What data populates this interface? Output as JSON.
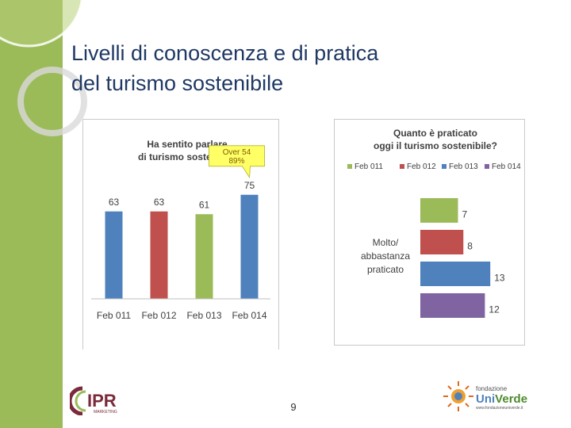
{
  "slide": {
    "title_lines": [
      "Livelli di conoscenza e di pratica",
      "del turismo sostenibile"
    ],
    "page_number": "9"
  },
  "chart_data": [
    {
      "type": "bar",
      "title_lines": [
        "Ha sentito parlare",
        "di turismo sostenibile"
      ],
      "categories": [
        "Feb 011",
        "Feb 012",
        "Feb 013",
        "Feb 014"
      ],
      "values": [
        63,
        63,
        61,
        75
      ],
      "colors": [
        "#4f81bd",
        "#c0504d",
        "#9bbb59",
        "#4f81bd"
      ],
      "ylim": [
        0,
        100
      ],
      "grid": false,
      "annotation": {
        "lines": [
          "Over 54",
          "89%"
        ],
        "target_category": "Feb 014"
      }
    },
    {
      "type": "bar",
      "orientation": "horizontal",
      "title_lines": [
        "Quanto è praticato",
        "oggi il turismo sostenibile?"
      ],
      "category_label_lines": [
        "Molto/",
        "abbastanza",
        "praticato"
      ],
      "series": [
        {
          "name": "Feb 011",
          "value": 7,
          "color": "#9bbb59"
        },
        {
          "name": "Feb 012",
          "value": 8,
          "color": "#c0504d"
        },
        {
          "name": "Feb 013",
          "value": 13,
          "color": "#4f81bd"
        },
        {
          "name": "Feb 014",
          "value": 12,
          "color": "#8064a2"
        }
      ],
      "xlim": [
        0,
        14
      ],
      "legend_position": "top",
      "grid": false
    }
  ],
  "logos": {
    "ipr": {
      "text": "IPR",
      "subtext": "MARKETING"
    },
    "univerde": {
      "line1": "fondazione",
      "brand_a": "Uni",
      "brand_b": "Verde",
      "url": "www.fondazioneuniverde.it"
    }
  },
  "colors": {
    "side_band": "#9bbb59",
    "title": "#1f3864",
    "callout_fill": "#ffff66"
  }
}
